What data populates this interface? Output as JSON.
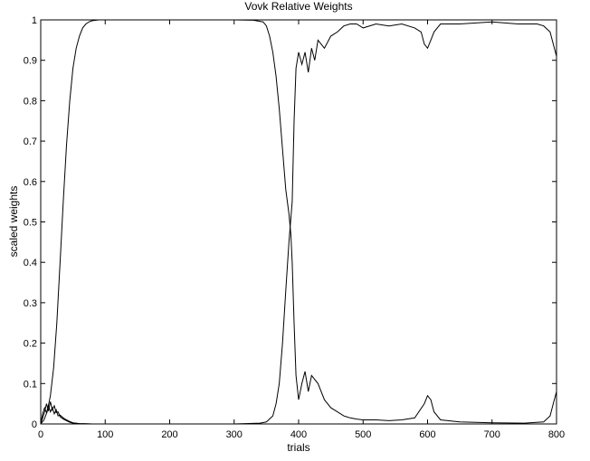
{
  "chart_data": {
    "type": "line",
    "title": "Vovk Relative Weights",
    "xlabel": "trials",
    "ylabel": "scaled weights",
    "xlim": [
      0,
      800
    ],
    "ylim": [
      0,
      1
    ],
    "xticks": [
      0,
      100,
      200,
      300,
      400,
      500,
      600,
      700,
      800
    ],
    "yticks": [
      0,
      0.1,
      0.2,
      0.3,
      0.4,
      0.5,
      0.6,
      0.7,
      0.8,
      0.9,
      1
    ],
    "grid": false,
    "legend": "none",
    "line_color": "#000000",
    "series": [
      {
        "x": [
          0,
          5,
          10,
          15,
          20,
          25,
          30,
          35,
          40,
          45,
          50,
          55,
          60,
          65,
          70,
          75,
          80,
          90,
          100,
          150,
          200,
          250,
          300,
          330,
          345,
          350,
          355,
          360,
          365,
          370,
          375,
          380,
          385,
          388,
          390,
          393,
          396,
          400,
          405,
          410,
          415,
          420,
          430,
          440,
          450,
          460,
          470,
          480,
          490,
          500,
          520,
          540,
          560,
          580,
          595,
          600,
          605,
          610,
          620,
          650,
          700,
          750,
          780,
          790,
          795,
          800
        ],
        "y": [
          0.0,
          0.01,
          0.03,
          0.07,
          0.14,
          0.25,
          0.4,
          0.55,
          0.69,
          0.8,
          0.88,
          0.93,
          0.96,
          0.98,
          0.99,
          0.995,
          0.998,
          1.0,
          1.0,
          1.0,
          1.0,
          1.0,
          1.0,
          0.999,
          0.995,
          0.985,
          0.96,
          0.92,
          0.86,
          0.78,
          0.68,
          0.58,
          0.52,
          0.47,
          0.4,
          0.25,
          0.12,
          0.06,
          0.1,
          0.13,
          0.08,
          0.12,
          0.1,
          0.06,
          0.04,
          0.03,
          0.02,
          0.015,
          0.012,
          0.01,
          0.01,
          0.008,
          0.01,
          0.015,
          0.05,
          0.07,
          0.06,
          0.03,
          0.01,
          0.005,
          0.003,
          0.002,
          0.005,
          0.02,
          0.05,
          0.08
        ]
      },
      {
        "x": [
          0,
          100,
          200,
          300,
          340,
          350,
          360,
          365,
          370,
          375,
          380,
          385,
          390,
          393,
          396,
          400,
          405,
          410,
          415,
          420,
          425,
          430,
          440,
          450,
          460,
          470,
          480,
          490,
          500,
          520,
          540,
          560,
          580,
          590,
          595,
          600,
          605,
          610,
          620,
          650,
          700,
          740,
          770,
          780,
          790,
          795,
          800
        ],
        "y": [
          0.0,
          0.0,
          0.0,
          0.0,
          0.002,
          0.005,
          0.02,
          0.05,
          0.1,
          0.2,
          0.33,
          0.45,
          0.55,
          0.75,
          0.88,
          0.92,
          0.89,
          0.92,
          0.87,
          0.93,
          0.9,
          0.95,
          0.93,
          0.96,
          0.97,
          0.985,
          0.99,
          0.99,
          0.98,
          0.99,
          0.985,
          0.99,
          0.98,
          0.97,
          0.94,
          0.93,
          0.95,
          0.97,
          0.99,
          0.99,
          0.995,
          0.99,
          0.99,
          0.985,
          0.97,
          0.94,
          0.91
        ]
      },
      {
        "x": [
          0,
          3,
          6,
          9,
          12,
          15,
          18,
          21,
          24,
          27,
          30,
          35,
          40,
          45,
          50,
          60,
          80,
          100,
          800
        ],
        "y": [
          0.0,
          0.025,
          0.04,
          0.028,
          0.045,
          0.03,
          0.04,
          0.025,
          0.035,
          0.02,
          0.022,
          0.015,
          0.01,
          0.006,
          0.003,
          0.001,
          0.0,
          0.0,
          0.0
        ]
      },
      {
        "x": [
          0,
          3,
          6,
          9,
          12,
          15,
          18,
          21,
          24,
          27,
          30,
          35,
          40,
          45,
          50,
          60,
          80,
          100,
          800
        ],
        "y": [
          0.0,
          0.015,
          0.03,
          0.05,
          0.032,
          0.055,
          0.035,
          0.045,
          0.028,
          0.03,
          0.018,
          0.012,
          0.008,
          0.004,
          0.002,
          0.001,
          0.0,
          0.0,
          0.0
        ]
      }
    ]
  }
}
